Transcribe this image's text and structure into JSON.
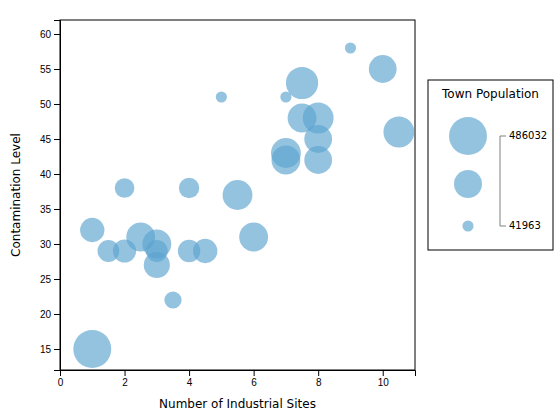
{
  "chart_data": {
    "type": "scatter",
    "x": [
      1,
      1,
      1.5,
      2,
      2,
      2.5,
      3,
      3,
      3,
      3.5,
      4,
      4,
      4.5,
      5,
      5.5,
      6,
      7,
      7,
      7,
      7.5,
      7.5,
      8,
      8,
      8,
      9,
      10,
      10.5
    ],
    "y": [
      15,
      32,
      29,
      29,
      38,
      31,
      27,
      30,
      29,
      22,
      38,
      29,
      29,
      51,
      37,
      31,
      43,
      42,
      51,
      53,
      48,
      45,
      48,
      42,
      58,
      55,
      46
    ],
    "sizes": [
      486032,
      200000,
      160000,
      180000,
      130000,
      280000,
      230000,
      280000,
      160000,
      100000,
      140000,
      170000,
      200000,
      41963,
      300000,
      280000,
      300000,
      280000,
      41963,
      350000,
      280000,
      260000,
      320000,
      260000,
      41963,
      260000,
      320000
    ],
    "color": "#5ba3d0",
    "xlabel": "Number of Industrial Sites",
    "ylabel": "Contamination Level",
    "xlim": [
      0,
      11
    ],
    "ylim": [
      12,
      62
    ],
    "xticks": [
      0,
      2,
      4,
      6,
      8,
      10
    ],
    "yticks": [
      15,
      20,
      25,
      30,
      35,
      40,
      45,
      50,
      55,
      60
    ],
    "size_legend": {
      "title": "Town Population",
      "values": [
        486032,
        263998,
        41963
      ],
      "labels": [
        "486032",
        null,
        "41963"
      ]
    }
  }
}
